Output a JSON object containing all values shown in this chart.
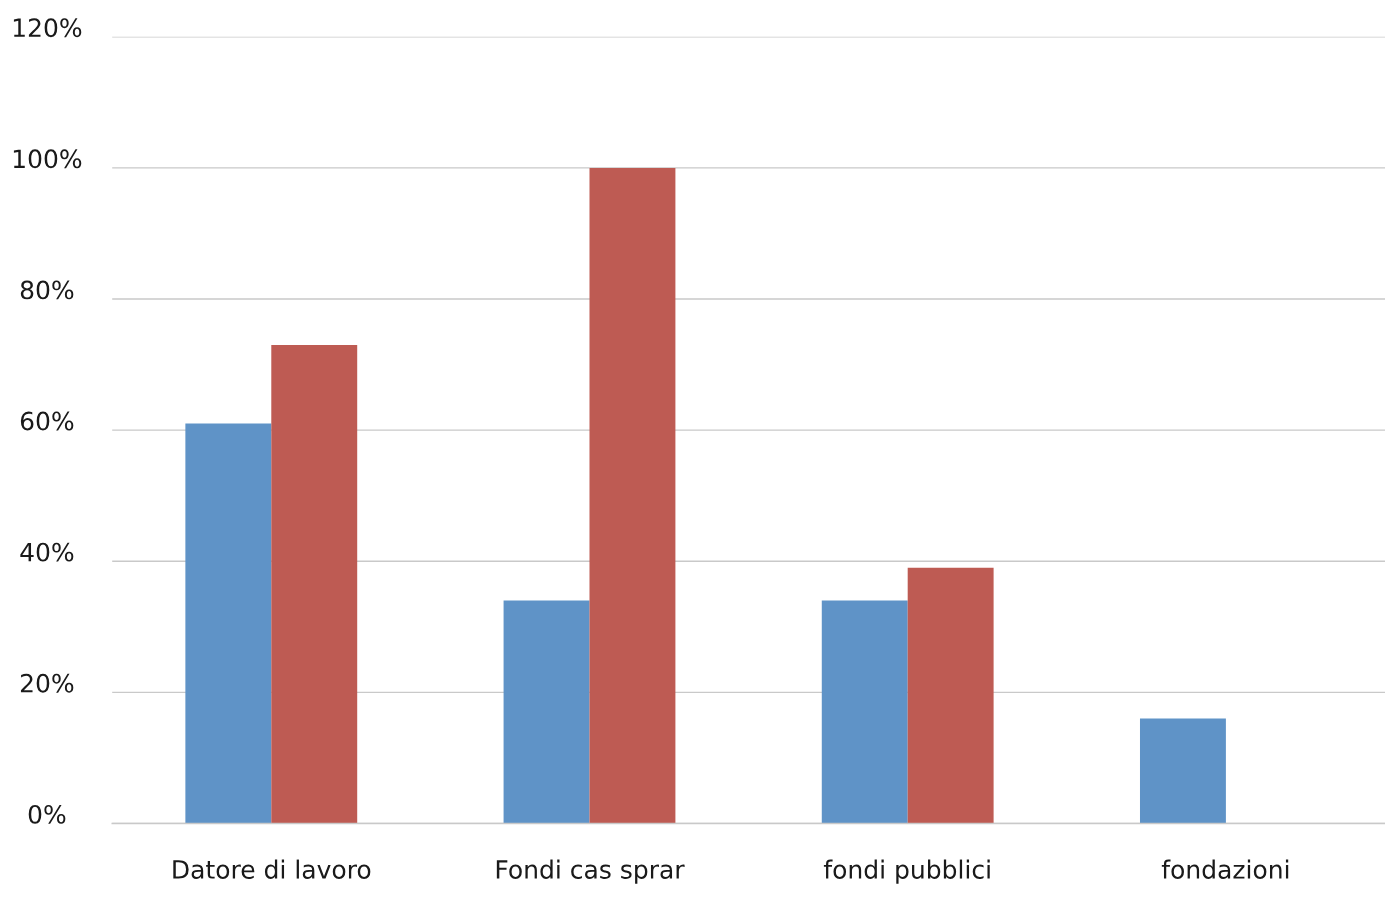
{
  "chart_data": {
    "type": "bar",
    "categories": [
      "Datore di lavoro",
      "Fondi cas sprar",
      "fondi pubblici",
      "fondazioni"
    ],
    "series": [
      {
        "color": "#5f93c7",
        "values": [
          61,
          34,
          34,
          16
        ]
      },
      {
        "color": "#be5b53",
        "values": [
          73,
          100,
          39,
          null
        ]
      }
    ],
    "ylim": [
      0,
      120
    ],
    "yticks": [
      {
        "value": 0,
        "label": "0%"
      },
      {
        "value": 20,
        "label": "20%"
      },
      {
        "value": 40,
        "label": "40%"
      },
      {
        "value": 60,
        "label": "60%"
      },
      {
        "value": 80,
        "label": "80%"
      },
      {
        "value": 100,
        "label": "100%"
      },
      {
        "value": 120,
        "label": "120%"
      }
    ],
    "grid": "y"
  }
}
